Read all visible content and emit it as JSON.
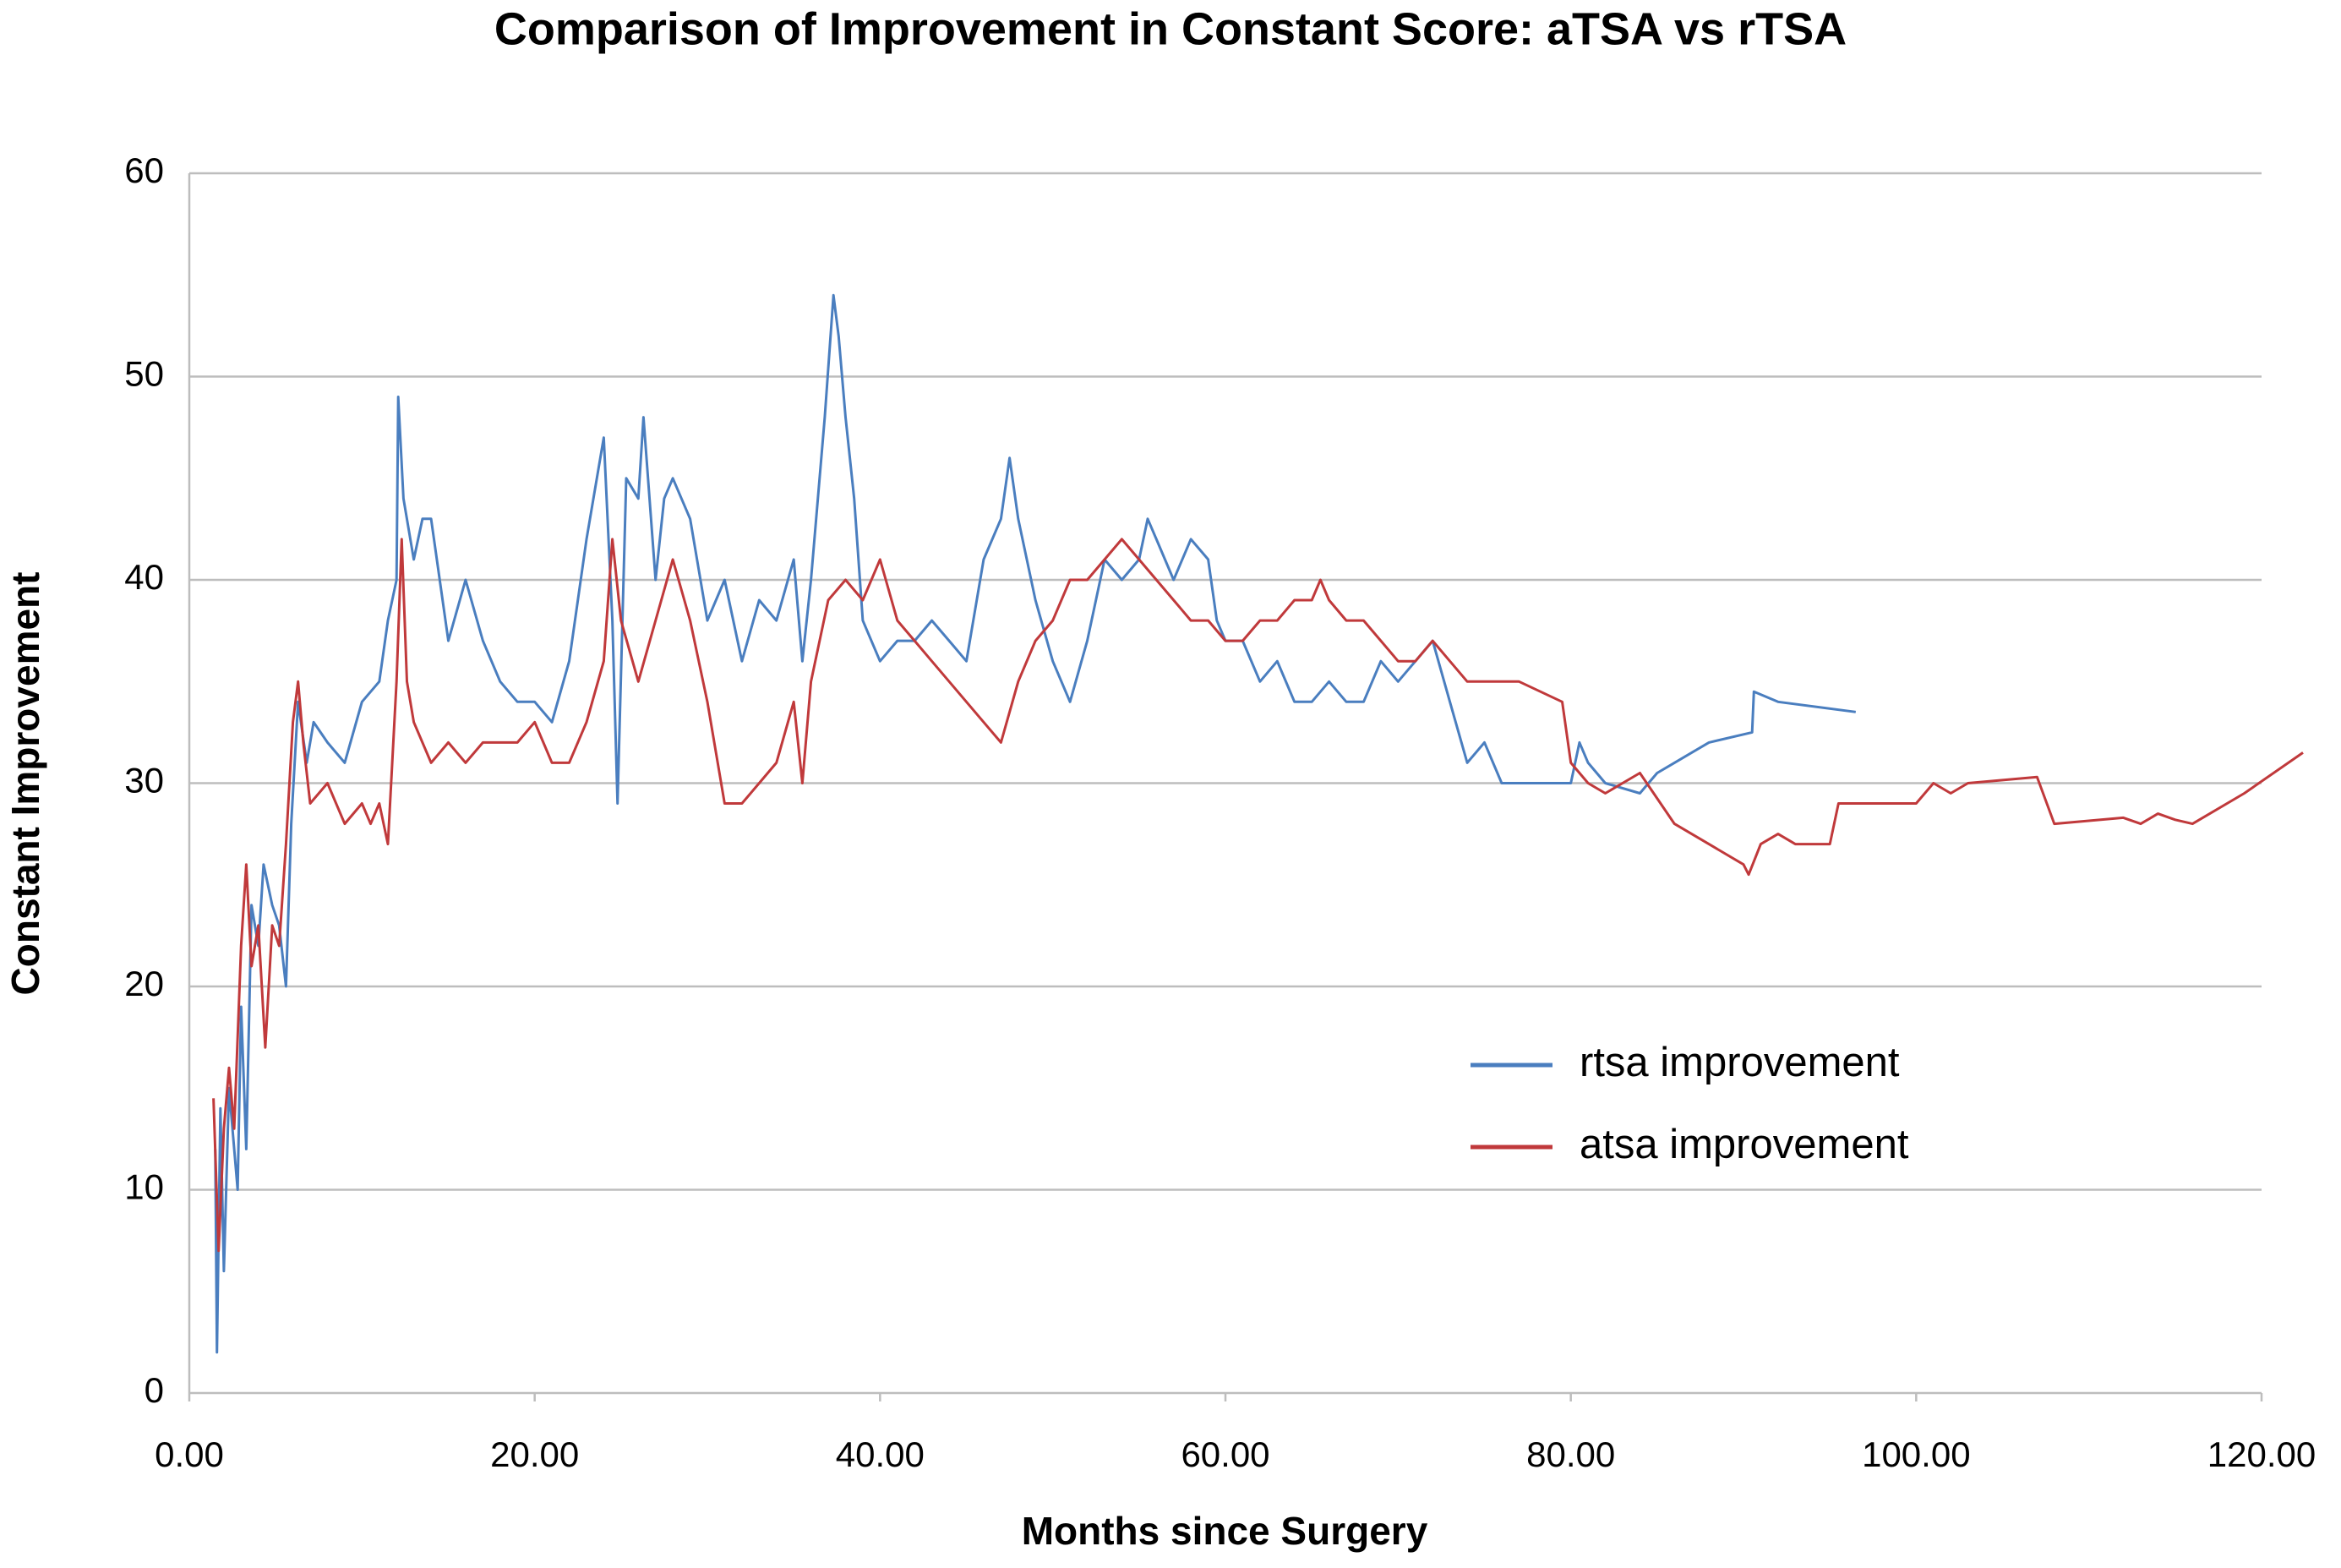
{
  "chart_data": {
    "type": "line",
    "title": "Comparison of Improvement in Constant Score: aTSA vs rTSA",
    "x_label": "Months since Surgery",
    "y_label": "Constant Improvement",
    "xlim": [
      0,
      120
    ],
    "xticks": [
      {
        "value": 0,
        "label": "0.00"
      },
      {
        "value": 20,
        "label": "20.00"
      },
      {
        "value": 40,
        "label": "40.00"
      },
      {
        "value": 60,
        "label": "60.00"
      },
      {
        "value": 80,
        "label": "80.00"
      },
      {
        "value": 100,
        "label": "100.00"
      },
      {
        "value": 120,
        "label": "120.00"
      }
    ],
    "ylim": [
      0,
      60
    ],
    "yticks": [
      0,
      10,
      20,
      30,
      40,
      50,
      60
    ],
    "grid": true,
    "legend": "right",
    "series": [
      {
        "name": "rtsa improvement",
        "color": "#4a7ebf",
        "x": [
          1.5,
          1.6,
          1.8,
          2,
          2.3,
          2.8,
          3,
          3.3,
          3.6,
          4,
          4.3,
          4.8,
          5.2,
          5.6,
          5.9,
          6.3,
          6.8,
          7.2,
          8,
          9,
          10,
          11,
          11.5,
          12,
          12.1,
          12.4,
          13,
          13.5,
          14,
          15,
          16,
          17,
          18,
          19,
          20,
          21,
          22,
          23,
          24,
          24.5,
          24.8,
          25.3,
          26,
          26.3,
          27,
          27.5,
          28,
          29,
          30,
          31,
          32,
          33,
          34,
          35,
          35.5,
          36,
          36.8,
          37.3,
          37.6,
          38,
          38.5,
          39,
          40,
          41,
          42,
          43,
          44,
          45,
          46,
          47,
          47.5,
          48,
          49,
          50,
          51,
          52,
          53,
          54,
          55,
          55.5,
          56,
          57,
          58,
          59,
          59.5,
          60,
          61,
          62,
          63,
          64,
          65,
          66,
          67,
          68,
          69,
          70,
          71,
          72,
          73,
          74,
          75,
          76,
          77,
          80,
          80.5,
          81,
          82,
          84,
          85,
          86,
          88,
          90.5,
          90.6,
          92,
          96.5
        ],
        "values": [
          12,
          2,
          14,
          6,
          15,
          10,
          19,
          12,
          24,
          22,
          26,
          24,
          23,
          20,
          28,
          34,
          31,
          33,
          32,
          31,
          34,
          35,
          38,
          40,
          49,
          44,
          41,
          43,
          43,
          37,
          40,
          37,
          35,
          34,
          34,
          33,
          36,
          42,
          47,
          38,
          29,
          45,
          44,
          48,
          40,
          44,
          45,
          43,
          38,
          40,
          36,
          39,
          38,
          41,
          36,
          40,
          48,
          54,
          52,
          48,
          44,
          38,
          36,
          37,
          37,
          38,
          37,
          36,
          41,
          43,
          46,
          43,
          39,
          36,
          34,
          37,
          41,
          40,
          41,
          43,
          42,
          40,
          42,
          41,
          38,
          37,
          37,
          35,
          36,
          34,
          34,
          35,
          34,
          34,
          36,
          35,
          36,
          37,
          34,
          31,
          32,
          30,
          30,
          30,
          32,
          31,
          30,
          29.5,
          30.5,
          31,
          32,
          32.5,
          34.5,
          34,
          33.5
        ]
      },
      {
        "name": "atsa improvement",
        "color": "#c0393b",
        "x": [
          1.4,
          1.7,
          2,
          2.3,
          2.6,
          3,
          3.3,
          3.6,
          4,
          4.4,
          4.8,
          5.2,
          5.6,
          6,
          6.3,
          6.6,
          7,
          8,
          9,
          10,
          10.5,
          11,
          11.5,
          12,
          12.3,
          12.6,
          13,
          14,
          15,
          16,
          17,
          18,
          19,
          20,
          21,
          22,
          23,
          24,
          24.5,
          25,
          26,
          27,
          28,
          29,
          30,
          31,
          32,
          33,
          34,
          35,
          35.5,
          36,
          37,
          38,
          39,
          40,
          41,
          42,
          43,
          44,
          45,
          46,
          47,
          48,
          49,
          50,
          51,
          52,
          53,
          54,
          55,
          56,
          57,
          58,
          59,
          60,
          61,
          62,
          63,
          64,
          65,
          65.5,
          66,
          67,
          68,
          69,
          70,
          71,
          72,
          73,
          74,
          77,
          79.5,
          80,
          81,
          82,
          84,
          86,
          88,
          90,
          90.3,
          91,
          92,
          93,
          95,
          95.5,
          100,
          101,
          102,
          103,
          107,
          108,
          112,
          113,
          114,
          115,
          116,
          119,
          122.4
        ],
        "values": [
          14.5,
          7,
          13,
          16,
          13,
          22,
          26,
          21,
          23,
          17,
          23,
          22,
          27,
          33,
          35,
          32,
          29,
          30,
          28,
          29,
          28,
          29,
          27,
          35,
          42,
          35,
          33,
          31,
          32,
          31,
          32,
          32,
          32,
          33,
          31,
          31,
          33,
          36,
          42,
          38,
          35,
          38,
          41,
          38,
          34,
          29,
          29,
          30,
          31,
          34,
          30,
          35,
          39,
          40,
          39,
          41,
          38,
          37,
          36,
          35,
          34,
          33,
          32,
          35,
          37,
          38,
          40,
          40,
          41,
          42,
          41,
          40,
          39,
          38,
          38,
          37,
          37,
          38,
          38,
          39,
          39,
          40,
          39,
          38,
          38,
          37,
          36,
          36,
          37,
          36,
          35,
          35,
          34,
          31,
          30,
          29.5,
          30.5,
          28,
          27,
          26,
          25.5,
          27,
          27.5,
          27,
          27,
          29,
          29,
          30,
          29.5,
          30,
          30.3,
          28,
          28.3,
          28,
          28.5,
          28.2,
          28,
          29.5,
          31.5
        ]
      }
    ]
  }
}
